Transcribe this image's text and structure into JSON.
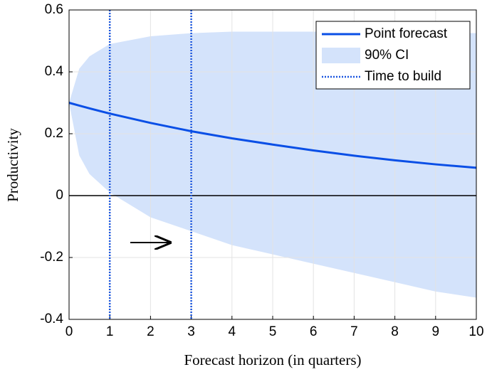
{
  "chart_data": {
    "type": "line",
    "xlabel": "Forecast horizon (in quarters)",
    "ylabel": "Productivity",
    "x": [
      0,
      0.25,
      0.5,
      1,
      2,
      3,
      4,
      5,
      6,
      7,
      8,
      9,
      10
    ],
    "series": [
      {
        "name": "Point forecast",
        "color": "#0a4fe6",
        "values": [
          0.3,
          0.291,
          0.282,
          0.265,
          0.235,
          0.208,
          0.185,
          0.165,
          0.146,
          0.129,
          0.114,
          0.101,
          0.09
        ]
      },
      {
        "name": "90% CI",
        "color": "#d4e3fb",
        "lower": [
          0.3,
          0.13,
          0.07,
          0.01,
          -0.07,
          -0.115,
          -0.16,
          -0.19,
          -0.22,
          -0.25,
          -0.28,
          -0.31,
          -0.33
        ],
        "upper": [
          0.3,
          0.41,
          0.45,
          0.49,
          0.515,
          0.525,
          0.53,
          0.53,
          0.53,
          0.53,
          0.53,
          0.528,
          0.525
        ]
      }
    ],
    "vlines": {
      "name": "Time to build",
      "color": "#1a56e0",
      "x": [
        1,
        3
      ]
    },
    "xlim": [
      0,
      10
    ],
    "xticks": [
      0,
      1,
      2,
      3,
      4,
      5,
      6,
      7,
      8,
      9,
      10
    ],
    "ylim": [
      -0.4,
      0.6
    ],
    "yticks": [
      -0.4,
      -0.2,
      0,
      0.2,
      0.4,
      0.6
    ],
    "grid": true,
    "legend": "upper right"
  }
}
